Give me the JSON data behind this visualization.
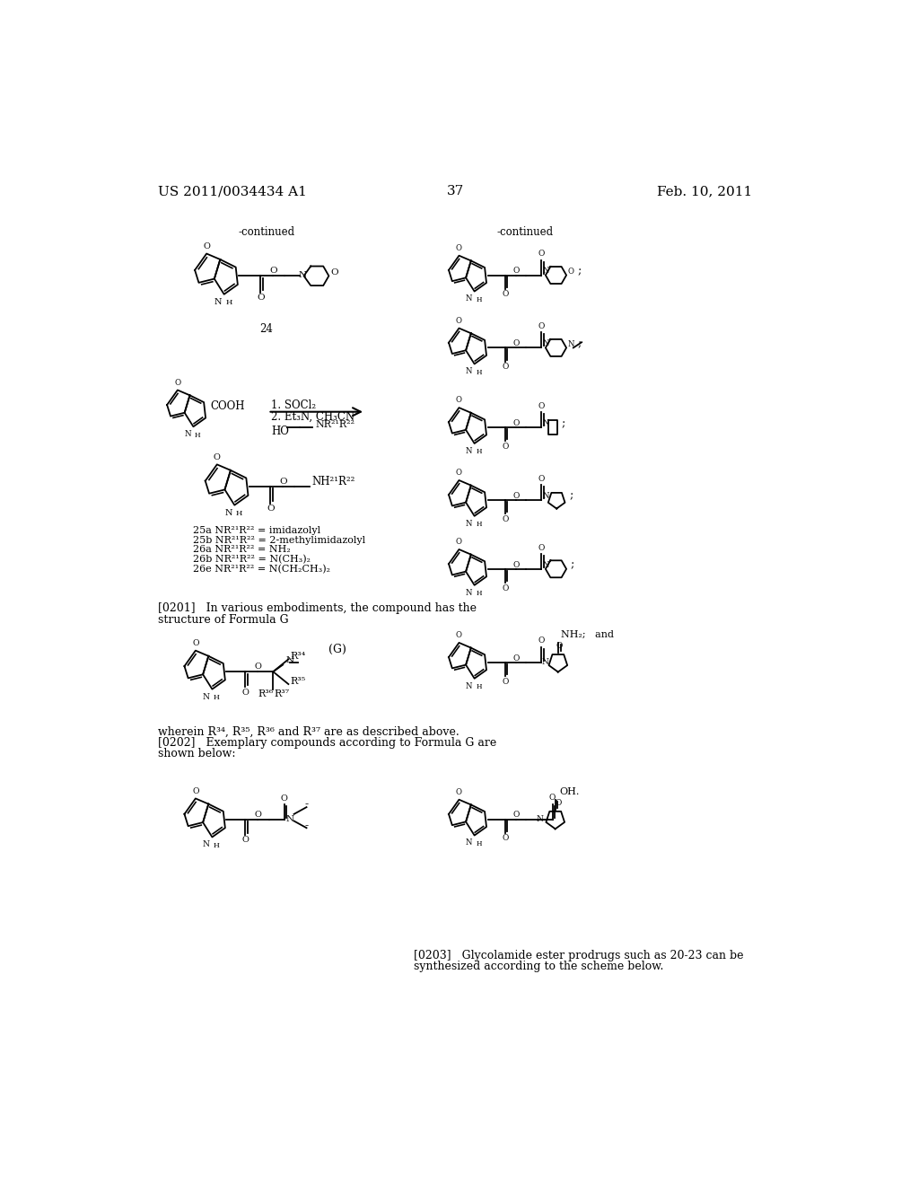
{
  "background_color": "#ffffff",
  "page_number": "37",
  "header_left": "US 2011/0034434 A1",
  "header_right": "Feb. 10, 2011",
  "left_continued": "-continued",
  "right_continued": "-continued",
  "compound_24_label": "24",
  "reaction_step1": "1. SOCl₂",
  "reaction_step2": "2. Et₃N, CH₃CN",
  "reaction_ho": "HO",
  "reaction_nr": "NR²¹R²²",
  "nh_label": "NH²¹R²²",
  "compound_labels": [
    "25a NR²¹R²² = imidazolyl",
    "25b NR²¹R²² = 2-methylimidazolyl",
    "26a NR²¹R²² = NH₂",
    "26b NR²¹R²² = N(CH₃)₂",
    "26e NR²¹R²² = N(CH₂CH₃)₂"
  ],
  "para_0201_line1": "[0201]   In various embodiments, the compound has the",
  "para_0201_line2": "structure of Formula G",
  "formula_g_label": "(G)",
  "r34_label": "R³⁴",
  "r35_label": "R³⁵",
  "r36_label": "R³⁶",
  "r37_label": "R³⁷",
  "wherein_text": "wherein R³⁴, R³⁵, R³⁶ and R³⁷ are as described above.",
  "para_0202_line1": "[0202]   Exemplary compounds according to Formula G are",
  "para_0202_line2": "shown below:",
  "nh2_label": "NH₂;   and",
  "oh_label": "OH.",
  "para_0203_line1": "[0203]   Glycolamide ester prodrugs such as 20-23 can be",
  "para_0203_line2": "synthesized according to the scheme below.",
  "font_size_header": 11,
  "font_size_body": 9,
  "font_size_small": 8
}
